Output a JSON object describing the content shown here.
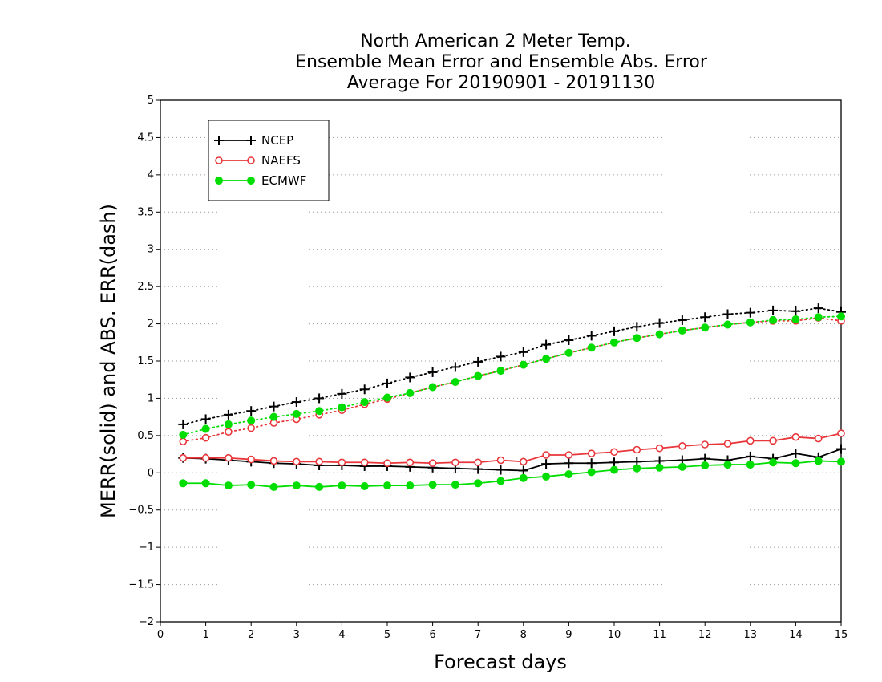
{
  "chart_data": {
    "type": "line",
    "title": [
      "North American 2 Meter Temp.",
      "Ensemble Mean Error and Ensemble Abs. Error",
      "Average For 20190901 - 20191130"
    ],
    "xlabel": "Forecast days",
    "ylabel": "MERR(solid) and ABS. ERR(dash)",
    "xlim": [
      0,
      15
    ],
    "ylim": [
      -2,
      5
    ],
    "x_ticks": [
      "0",
      "1",
      "2",
      "3",
      "4",
      "5",
      "6",
      "7",
      "8",
      "9",
      "10",
      "11",
      "12",
      "13",
      "14",
      "15"
    ],
    "y_ticks": [
      "−2",
      "−1.5",
      "−1",
      "−0.5",
      "0",
      "0.5",
      "1",
      "1.5",
      "2",
      "2.5",
      "3",
      "3.5",
      "4",
      "4.5",
      "5"
    ],
    "grid": "horizontal dotted",
    "legend_position": "top-left",
    "x": [
      0.5,
      1,
      1.5,
      2,
      2.5,
      3,
      3.5,
      4,
      4.5,
      5,
      5.5,
      6,
      6.5,
      7,
      7.5,
      8,
      8.5,
      9,
      9.5,
      10,
      10.5,
      11,
      11.5,
      12,
      12.5,
      13,
      13.5,
      14,
      14.5,
      15
    ],
    "series": [
      {
        "name": "NCEP",
        "color": "#000000",
        "marker": "plus",
        "merr": [
          0.2,
          0.19,
          0.17,
          0.15,
          0.13,
          0.12,
          0.1,
          0.1,
          0.09,
          0.09,
          0.08,
          0.07,
          0.06,
          0.05,
          0.04,
          0.03,
          0.12,
          0.13,
          0.13,
          0.14,
          0.15,
          0.16,
          0.17,
          0.19,
          0.17,
          0.22,
          0.19,
          0.26,
          0.21,
          0.32
        ],
        "abs_err": [
          0.65,
          0.72,
          0.78,
          0.83,
          0.89,
          0.95,
          1.0,
          1.06,
          1.12,
          1.2,
          1.28,
          1.35,
          1.42,
          1.49,
          1.56,
          1.62,
          1.72,
          1.78,
          1.84,
          1.9,
          1.96,
          2.01,
          2.05,
          2.09,
          2.13,
          2.15,
          2.18,
          2.17,
          2.21,
          2.16
        ]
      },
      {
        "name": "NAEFS",
        "color": "#e8363a",
        "marker": "open-circle",
        "merr": [
          0.2,
          0.2,
          0.2,
          0.18,
          0.16,
          0.15,
          0.15,
          0.14,
          0.14,
          0.13,
          0.14,
          0.13,
          0.14,
          0.14,
          0.17,
          0.15,
          0.24,
          0.24,
          0.26,
          0.28,
          0.31,
          0.33,
          0.36,
          0.38,
          0.39,
          0.43,
          0.43,
          0.48,
          0.46,
          0.53
        ],
        "abs_err": [
          0.42,
          0.47,
          0.55,
          0.6,
          0.67,
          0.72,
          0.78,
          0.84,
          0.92,
          0.99,
          1.07,
          1.15,
          1.22,
          1.3,
          1.37,
          1.45,
          1.53,
          1.61,
          1.68,
          1.75,
          1.81,
          1.86,
          1.91,
          1.95,
          1.99,
          2.02,
          2.04,
          2.04,
          2.08,
          2.04
        ]
      },
      {
        "name": "ECMWF",
        "color": "#00dd00",
        "marker": "filled-circle",
        "merr": [
          -0.14,
          -0.14,
          -0.17,
          -0.16,
          -0.19,
          -0.17,
          -0.19,
          -0.17,
          -0.18,
          -0.17,
          -0.17,
          -0.16,
          -0.16,
          -0.14,
          -0.11,
          -0.07,
          -0.05,
          -0.02,
          0.01,
          0.04,
          0.06,
          0.07,
          0.08,
          0.1,
          0.11,
          0.11,
          0.14,
          0.13,
          0.16,
          0.15
        ],
        "abs_err": [
          0.51,
          0.59,
          0.65,
          0.7,
          0.75,
          0.79,
          0.83,
          0.88,
          0.95,
          1.01,
          1.07,
          1.15,
          1.22,
          1.3,
          1.37,
          1.45,
          1.53,
          1.61,
          1.68,
          1.75,
          1.81,
          1.86,
          1.91,
          1.95,
          1.99,
          2.02,
          2.05,
          2.06,
          2.09,
          2.1
        ]
      }
    ]
  }
}
